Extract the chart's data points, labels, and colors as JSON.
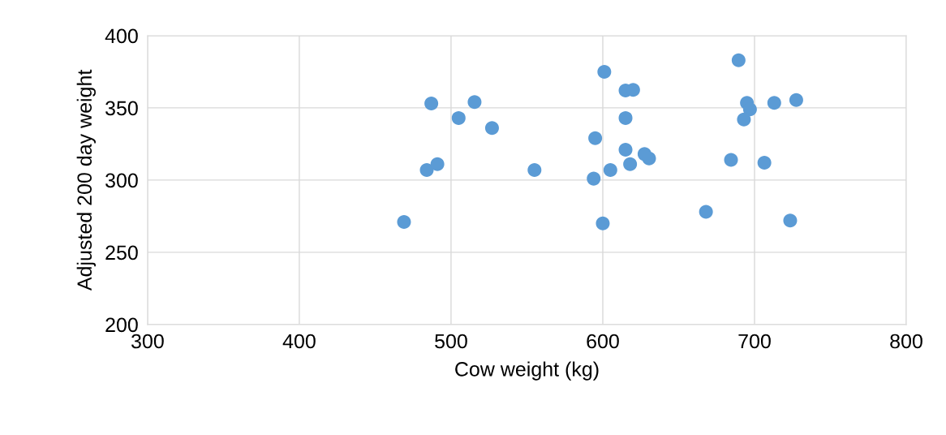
{
  "chart_data": {
    "type": "scatter",
    "xlabel": "Cow weight (kg)",
    "ylabel": "Adjusted 200 day weight",
    "x": [
      487,
      505,
      515.5,
      527,
      484,
      491,
      469,
      555,
      601,
      615,
      620,
      615,
      595,
      615,
      627.5,
      630.5,
      618,
      605,
      594,
      600,
      689.5,
      695,
      697,
      693,
      713,
      727.5,
      684.5,
      706.5,
      668,
      723.5
    ],
    "values": [
      353,
      343,
      354,
      336,
      307,
      311,
      271,
      307,
      375,
      362,
      362.5,
      343,
      329,
      321,
      318,
      315,
      311,
      307,
      301,
      270,
      383,
      353.5,
      349,
      342,
      353.5,
      355.5,
      314,
      312,
      278,
      272
    ],
    "color": "#5b9bd5",
    "marker": "circle",
    "xlim": [
      300,
      800
    ],
    "xticks": [
      300,
      400,
      500,
      600,
      700,
      800
    ],
    "ylim": [
      200,
      400
    ],
    "yticks": [
      200,
      250,
      300,
      350,
      400
    ],
    "grid": true
  }
}
